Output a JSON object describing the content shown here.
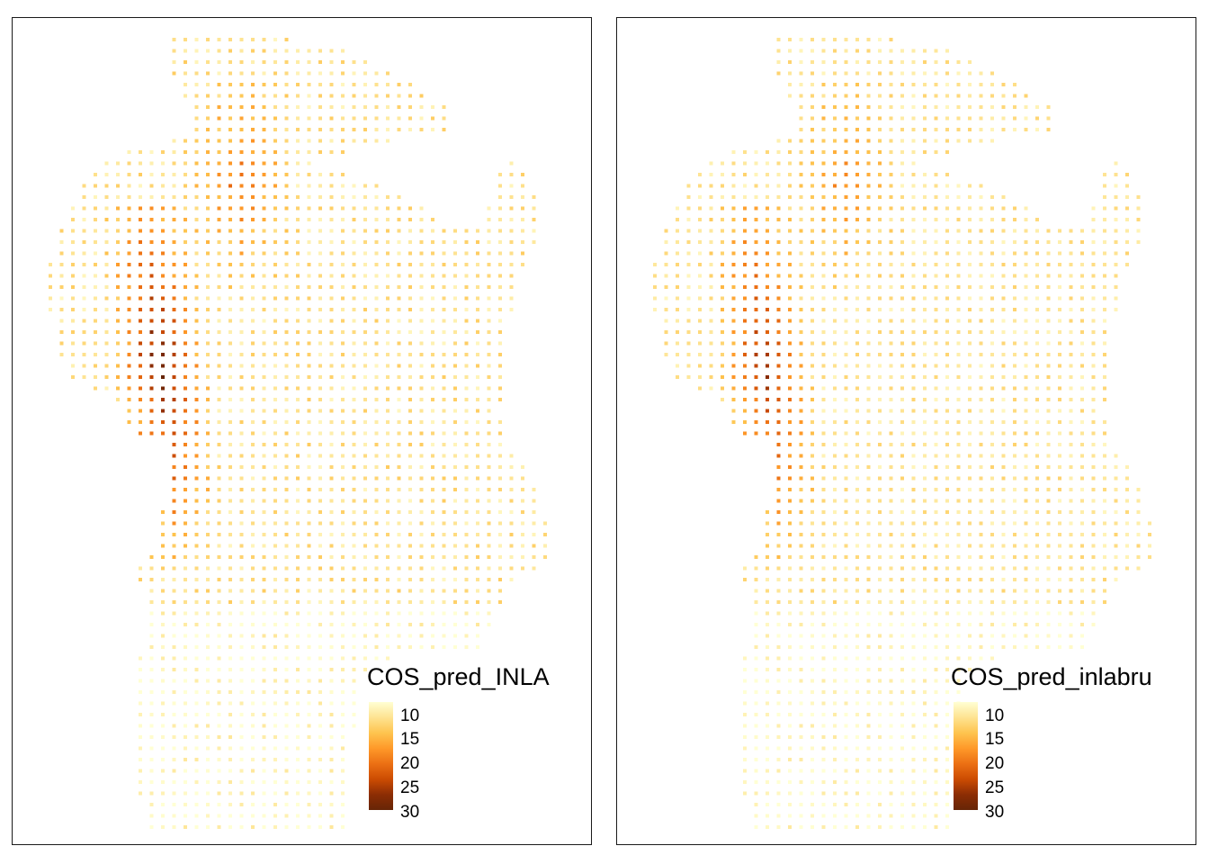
{
  "chart_data": [
    {
      "type": "heatmap",
      "title": "",
      "legend": {
        "title": "COS_pred_INLA",
        "ticks": [
          10,
          15,
          20,
          25,
          30
        ],
        "range": [
          8,
          32
        ],
        "placement": "bottom-right"
      },
      "colors": [
        "#ffffd4",
        "#fee391",
        "#fec44f",
        "#fe9929",
        "#ec7014",
        "#cc4c02",
        "#8c2d04",
        "#662506"
      ],
      "description_values": {
        "hotspot_min": 8,
        "hotspot_max": 32
      }
    },
    {
      "type": "heatmap",
      "title": "",
      "legend": {
        "title": "COS_pred_inlabru",
        "ticks": [
          10,
          15,
          20,
          25,
          30
        ],
        "range": [
          8,
          32
        ],
        "placement": "bottom-right"
      },
      "colors": [
        "#ffffd4",
        "#fee391",
        "#fec44f",
        "#fe9929",
        "#ec7014",
        "#cc4c02",
        "#8c2d04",
        "#662506"
      ]
    }
  ]
}
